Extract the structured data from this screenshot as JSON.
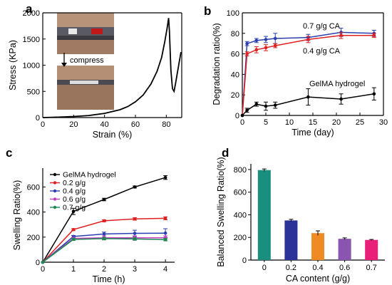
{
  "chart_data": [
    {
      "panel": "a",
      "type": "line",
      "xlabel": "Strain (%)",
      "ylabel": "Stress (KPa)",
      "xlim": [
        0,
        90
      ],
      "ylim": [
        0,
        2000
      ],
      "xticks": [
        0,
        20,
        40,
        60,
        80
      ],
      "yticks": [
        0,
        500,
        1000,
        1500,
        2000
      ],
      "inset_label": "compress",
      "series": [
        {
          "color": "#000000",
          "x": [
            0,
            10,
            20,
            30,
            40,
            50,
            55,
            60,
            65,
            70,
            74,
            77,
            79,
            80.5,
            81.5,
            82,
            83,
            84,
            85,
            86,
            88,
            89.5
          ],
          "y": [
            0,
            8,
            20,
            40,
            80,
            150,
            210,
            300,
            430,
            640,
            880,
            1150,
            1450,
            1700,
            1900,
            1650,
            900,
            550,
            500,
            650,
            1000,
            1250
          ]
        }
      ]
    },
    {
      "panel": "b",
      "type": "line",
      "xlabel": "Time (day)",
      "ylabel": "Degradation ratio(%)",
      "xlim": [
        0,
        30
      ],
      "ylim": [
        0,
        100
      ],
      "xticks": [
        0,
        5,
        10,
        15,
        20,
        25,
        30
      ],
      "yticks": [
        0,
        20,
        40,
        60,
        80,
        100
      ],
      "series": [
        {
          "name": "0.7 g/g CA",
          "color": "#2b3fb0",
          "x": [
            0,
            1,
            3,
            5,
            7,
            14,
            21,
            28
          ],
          "y": [
            0,
            70,
            73,
            74,
            75,
            76,
            81,
            80
          ],
          "err": [
            0,
            2,
            2,
            3,
            5,
            3,
            4,
            3
          ]
        },
        {
          "name": "0.4 g/g CA",
          "color": "#e02020",
          "x": [
            0,
            1,
            3,
            5,
            7,
            14,
            21,
            28
          ],
          "y": [
            0,
            60,
            64,
            66,
            68,
            74,
            78,
            78
          ],
          "err": [
            0,
            2,
            3,
            3,
            2,
            3,
            3,
            2
          ]
        },
        {
          "name": "GelMA hydrogel",
          "color": "#000000",
          "x": [
            0,
            1,
            3,
            5,
            7,
            14,
            21,
            28
          ],
          "y": [
            0,
            5,
            11,
            9,
            10,
            18,
            16,
            21
          ],
          "err": [
            0,
            2,
            2,
            4,
            3,
            8,
            5,
            6
          ]
        }
      ]
    },
    {
      "panel": "c",
      "type": "line",
      "xlabel": "Time (h)",
      "ylabel": "Swelling Ratio(%)",
      "xlim": [
        0,
        4.3
      ],
      "ylim": [
        0,
        750
      ],
      "xticks": [
        0,
        1,
        2,
        3,
        4
      ],
      "yticks": [
        0,
        200,
        400,
        600
      ],
      "legend": "top-left",
      "series": [
        {
          "name": "GelMA hydrogel",
          "color": "#000000",
          "x": [
            0,
            1,
            2,
            3,
            4
          ],
          "y": [
            0,
            405,
            500,
            600,
            675
          ],
          "err": [
            0,
            25,
            10,
            8,
            15
          ]
        },
        {
          "name": "0.2 g/g",
          "color": "#e02020",
          "x": [
            0,
            1,
            2,
            3,
            4
          ],
          "y": [
            0,
            260,
            330,
            345,
            350
          ],
          "err": [
            0,
            8,
            8,
            10,
            12
          ]
        },
        {
          "name": "0.4 g/g",
          "color": "#2b3fb0",
          "x": [
            0,
            1,
            2,
            3,
            4
          ],
          "y": [
            0,
            205,
            225,
            230,
            232
          ],
          "err": [
            0,
            8,
            15,
            25,
            35
          ]
        },
        {
          "name": "0.6 g/g",
          "color": "#c040c0",
          "x": [
            0,
            1,
            2,
            3,
            4
          ],
          "y": [
            0,
            190,
            195,
            195,
            195
          ],
          "err": [
            0,
            8,
            15,
            15,
            15
          ]
        },
        {
          "name": "0.7 g/g",
          "color": "#1a8a50",
          "x": [
            0,
            1,
            2,
            3,
            4
          ],
          "y": [
            0,
            182,
            188,
            185,
            180
          ],
          "err": [
            0,
            8,
            10,
            10,
            10
          ]
        }
      ]
    },
    {
      "panel": "d",
      "type": "bar",
      "xlabel": "CA content (g/g)",
      "ylabel": "Balanced Swelling Ratio(%)",
      "ylim": [
        0,
        850
      ],
      "yticks": [
        0,
        200,
        400,
        600,
        800
      ],
      "categories": [
        "0",
        "0.2",
        "0.4",
        "0.6",
        "0.7"
      ],
      "values": [
        795,
        350,
        238,
        188,
        178
      ],
      "errors": [
        10,
        10,
        20,
        8,
        4
      ],
      "colors": [
        "#1a8f80",
        "#2b3399",
        "#f08a24",
        "#8a55b0",
        "#e8207a"
      ]
    }
  ]
}
